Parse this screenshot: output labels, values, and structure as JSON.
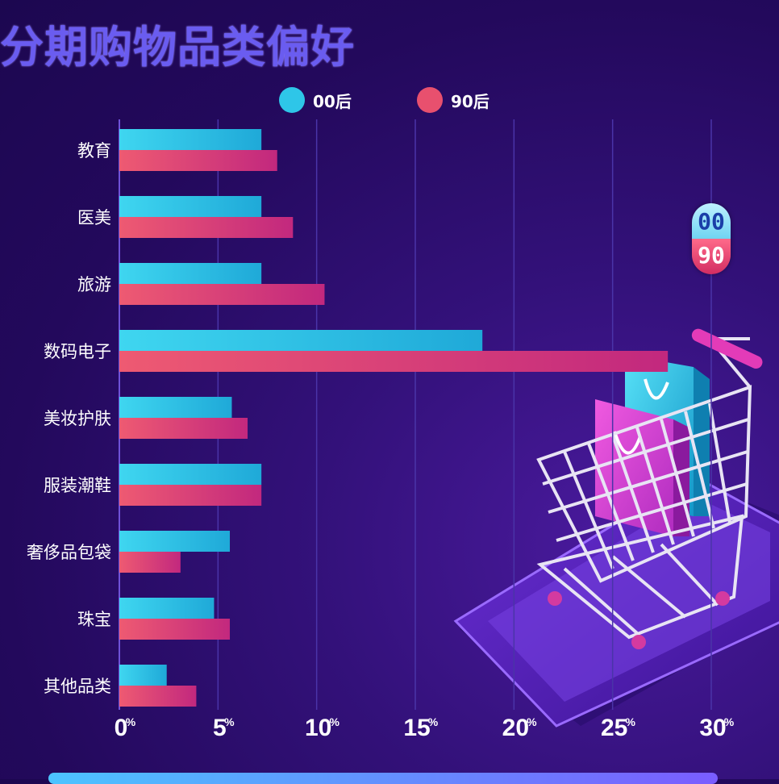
{
  "title": "分期购物品类偏好",
  "legend": [
    {
      "label": "00后",
      "color": "#2ec6e8"
    },
    {
      "label": "90后",
      "color": "#e8506e"
    }
  ],
  "badge": {
    "top": "00",
    "bottom": "90"
  },
  "chart_data": {
    "type": "bar",
    "orientation": "horizontal",
    "title": "分期购物品类偏好",
    "categories": [
      "教育",
      "医美",
      "旅游",
      "数码电子",
      "美妆护肤",
      "服装潮鞋",
      "奢侈品包袋",
      "珠宝",
      "其他品类"
    ],
    "series": [
      {
        "name": "00后",
        "values": [
          7.2,
          7.2,
          7.2,
          18.4,
          5.7,
          7.2,
          5.6,
          4.8,
          2.4
        ],
        "color": "#2ec6e8"
      },
      {
        "name": "90后",
        "values": [
          8.0,
          8.8,
          10.4,
          27.8,
          6.5,
          7.2,
          3.1,
          5.6,
          3.9
        ],
        "color": "#e8506e"
      }
    ],
    "xlim": [
      0,
      30
    ],
    "xticks": [
      0,
      5,
      10,
      15,
      20,
      25,
      30
    ],
    "tick_suffix": "%",
    "grid": true,
    "legend_position": "top"
  }
}
